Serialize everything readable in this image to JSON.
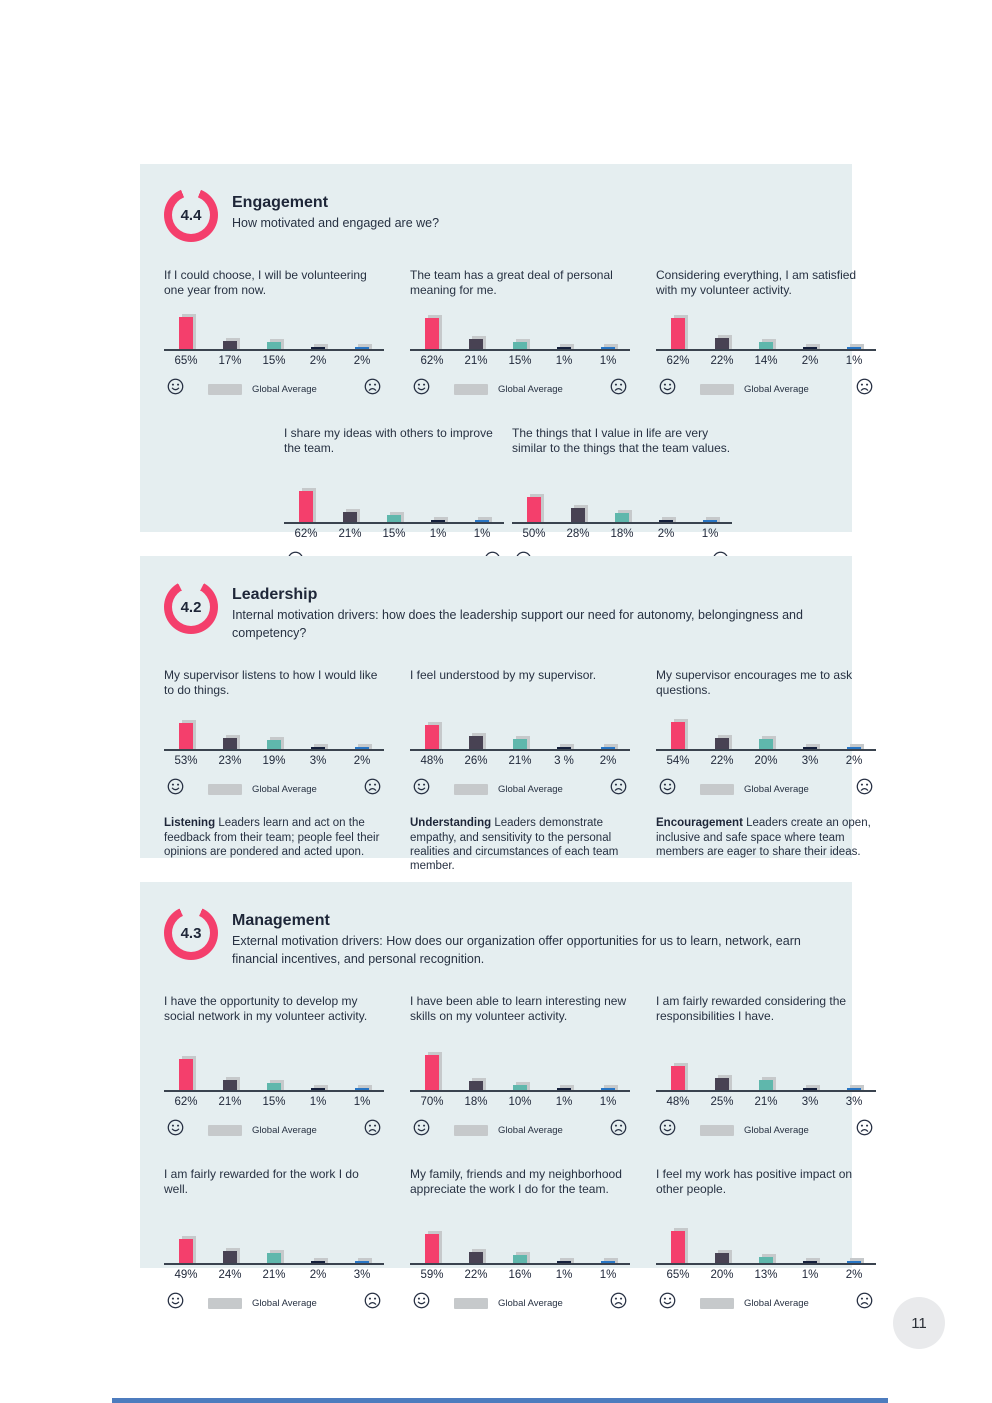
{
  "footer": {
    "page_number": "11"
  },
  "legend": {
    "label": "Global Average",
    "happy_icon": "smiley-face",
    "sad_icon": "frowny-face",
    "swatch": "global-average-swatch"
  },
  "colors": {
    "accent_pink": "#F43F6C",
    "bar_palette": [
      "#F43F6C",
      "#484253",
      "#5FB7AC",
      "#15203C",
      "#2976C4"
    ],
    "global_average_gray": "#C6C9CB",
    "panel_bg": "#E5EEF0",
    "axis": "#3A434F",
    "footer_bar_blue": "#4D7CBE",
    "page_circle_bg": "#E9EAEC"
  },
  "sections": [
    {
      "score": "4.4",
      "score_max": 5,
      "title": "Engagement",
      "subtitle": "How motivated and engaged are we?",
      "charts": [
        {
          "question": "If I could choose, I will be volunteering one year from now.",
          "values": [
            65,
            17,
            15,
            2,
            2
          ],
          "labels": [
            "65%",
            "17%",
            "15%",
            "2%",
            "2%"
          ]
        },
        {
          "question": "The team has a great deal of personal meaning for me.",
          "values": [
            62,
            21,
            15,
            1,
            1
          ],
          "labels": [
            "62%",
            "21%",
            "15%",
            "1%",
            "1%"
          ]
        },
        {
          "question": "Considering everything, I am satisfied with my volunteer activity.",
          "values": [
            62,
            22,
            14,
            2,
            1
          ],
          "labels": [
            "62%",
            "22%",
            "14%",
            "2%",
            "1%"
          ]
        },
        {
          "question": "I share my ideas with others to improve the team.",
          "values": [
            62,
            21,
            15,
            1,
            1
          ],
          "labels": [
            "62%",
            "21%",
            "15%",
            "1%",
            "1%"
          ]
        },
        {
          "question": "The things that I value in life are very similar to the things that the team values.",
          "values": [
            50,
            28,
            18,
            2,
            1
          ],
          "labels": [
            "50%",
            "28%",
            "18%",
            "2%",
            "1%"
          ]
        }
      ]
    },
    {
      "score": "4.2",
      "score_max": 5,
      "title": "Leadership",
      "subtitle": "Internal motivation drivers: how does the leadership support our need for autonomy, belongingness and competency?",
      "charts": [
        {
          "question": "My supervisor listens to how I would like to do things.",
          "values": [
            53,
            23,
            19,
            3,
            2
          ],
          "labels": [
            "53%",
            "23%",
            "19%",
            "3%",
            "2%"
          ],
          "desc_term": "Listening",
          "desc_text": "Leaders learn and act on the feedback from their team; people feel their opinions are pondered and acted upon."
        },
        {
          "question": "I feel understood by my supervisor.",
          "values": [
            48,
            26,
            21,
            3,
            2
          ],
          "labels": [
            "48%",
            "26%",
            "21%",
            "3 %",
            "2%"
          ],
          "desc_term": "Understanding",
          "desc_text": "Leaders demonstrate empathy, and sensitivity to the personal realities and circumstances of each team member."
        },
        {
          "question": "My supervisor encourages me to ask questions.",
          "values": [
            54,
            22,
            20,
            3,
            2
          ],
          "labels": [
            "54%",
            "22%",
            "20%",
            "3%",
            "2%"
          ],
          "desc_term": "Encouragement",
          "desc_text": "Leaders create an open, inclusive and safe space where team members are eager to share their ideas."
        }
      ]
    },
    {
      "score": "4.3",
      "score_max": 5,
      "title": "Management",
      "subtitle": "External motivation drivers: How does our organization offer opportunities for us to learn, network, earn financial incentives, and personal recognition.",
      "charts": [
        {
          "question": "I have the opportunity to develop my social network in my volunteer activity.",
          "values": [
            62,
            21,
            15,
            1,
            1
          ],
          "labels": [
            "62%",
            "21%",
            "15%",
            "1%",
            "1%"
          ]
        },
        {
          "question": "I have been able to learn interesting new skills on my volunteer activity.",
          "values": [
            70,
            18,
            10,
            1,
            1
          ],
          "labels": [
            "70%",
            "18%",
            "10%",
            "1%",
            "1%"
          ]
        },
        {
          "question": "I am fairly rewarded considering the responsibilities I have.",
          "values": [
            48,
            25,
            21,
            3,
            3
          ],
          "labels": [
            "48%",
            "25%",
            "21%",
            "3%",
            "3%"
          ]
        },
        {
          "question": "I am fairly rewarded for the work I do well.",
          "values": [
            49,
            24,
            21,
            2,
            3
          ],
          "labels": [
            "49%",
            "24%",
            "21%",
            "2%",
            "3%"
          ]
        },
        {
          "question": "My family, friends and my neighborhood appreciate the work I do for the team.",
          "values": [
            59,
            22,
            16,
            1,
            1
          ],
          "labels": [
            "59%",
            "22%",
            "16%",
            "1%",
            "1%"
          ]
        },
        {
          "question": "I feel my work has positive impact on other people.",
          "values": [
            65,
            20,
            13,
            1,
            2
          ],
          "labels": [
            "65%",
            "20%",
            "13%",
            "1%",
            "2%"
          ]
        }
      ]
    }
  ],
  "chart_data": {
    "type": "bar",
    "note": "Each mini chart shows answer distribution percentages (5 bars, most-positive to most-negative) with a gray Global Average shadow bar behind each colored bar (unlabeled).",
    "charts": [
      {
        "section": "Engagement",
        "question": "If I could choose, I will be volunteering one year from now.",
        "values": [
          65,
          17,
          15,
          2,
          2
        ]
      },
      {
        "section": "Engagement",
        "question": "The team has a great deal of personal meaning for me.",
        "values": [
          62,
          21,
          15,
          1,
          1
        ]
      },
      {
        "section": "Engagement",
        "question": "Considering everything, I am satisfied with my volunteer activity.",
        "values": [
          62,
          22,
          14,
          2,
          1
        ]
      },
      {
        "section": "Engagement",
        "question": "I share my ideas with others to improve the team.",
        "values": [
          62,
          21,
          15,
          1,
          1
        ]
      },
      {
        "section": "Engagement",
        "question": "The things that I value in life are very similar to the things that the team values.",
        "values": [
          50,
          28,
          18,
          2,
          1
        ]
      },
      {
        "section": "Leadership",
        "question": "My supervisor listens to how I would like to do things.",
        "values": [
          53,
          23,
          19,
          3,
          2
        ]
      },
      {
        "section": "Leadership",
        "question": "I feel understood by my supervisor.",
        "values": [
          48,
          26,
          21,
          3,
          2
        ]
      },
      {
        "section": "Leadership",
        "question": "My supervisor encourages me to ask questions.",
        "values": [
          54,
          22,
          20,
          3,
          2
        ]
      },
      {
        "section": "Management",
        "question": "I have the opportunity to develop my social network in my volunteer activity.",
        "values": [
          62,
          21,
          15,
          1,
          1
        ]
      },
      {
        "section": "Management",
        "question": "I have been able to learn interesting new skills on my volunteer activity.",
        "values": [
          70,
          18,
          10,
          1,
          1
        ]
      },
      {
        "section": "Management",
        "question": "I am fairly rewarded considering the responsibilities I have.",
        "values": [
          48,
          25,
          21,
          3,
          3
        ]
      },
      {
        "section": "Management",
        "question": "I am fairly rewarded for the work I do well.",
        "values": [
          49,
          24,
          21,
          2,
          3
        ]
      },
      {
        "section": "Management",
        "question": "My family, friends and my neighborhood appreciate the work I do for the team.",
        "values": [
          59,
          22,
          16,
          1,
          1
        ]
      },
      {
        "section": "Management",
        "question": "I feel my work has positive impact on other people.",
        "values": [
          65,
          20,
          13,
          1,
          2
        ]
      }
    ],
    "section_scores": [
      {
        "section": "Engagement",
        "score": 4.4,
        "max": 5
      },
      {
        "section": "Leadership",
        "score": 4.2,
        "max": 5
      },
      {
        "section": "Management",
        "score": 4.3,
        "max": 5
      }
    ]
  }
}
